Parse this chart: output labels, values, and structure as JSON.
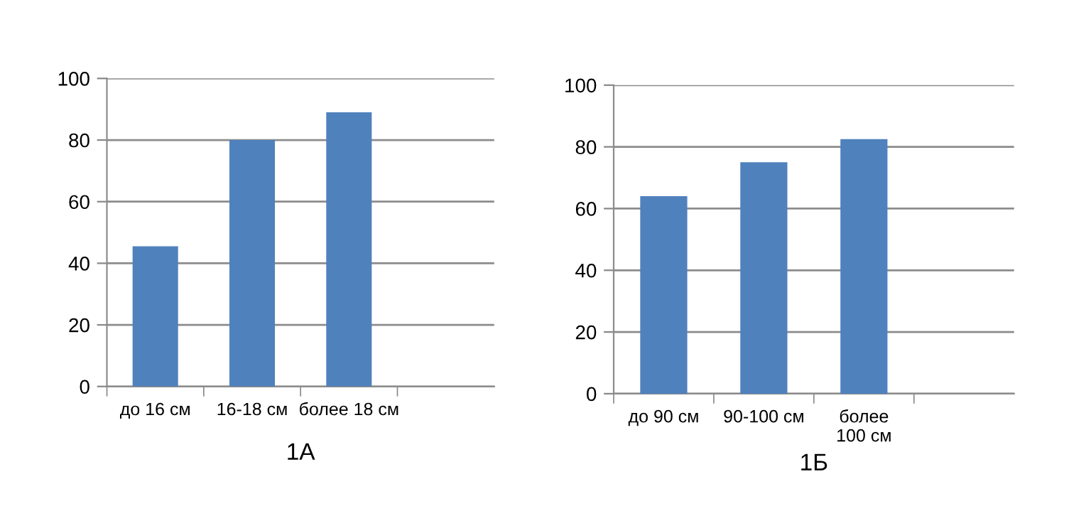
{
  "chart_data": [
    {
      "type": "bar",
      "xlabel": "1А",
      "categories": [
        "до 16 см",
        "16-18 см",
        "более 18 см",
        null
      ],
      "values": [
        45.5,
        80,
        89,
        null
      ],
      "color": "#4f81bd",
      "ylim": [
        0,
        100
      ],
      "yticks": [
        0,
        20,
        40,
        60,
        80,
        100
      ],
      "grid": "y"
    },
    {
      "type": "bar",
      "xlabel": "1Б",
      "categories": [
        "до 90 см",
        "90-100 см",
        "более\n100 см",
        null
      ],
      "values": [
        64,
        75,
        82.5,
        null
      ],
      "color": "#4f81bd",
      "ylim": [
        0,
        100
      ],
      "yticks": [
        0,
        20,
        40,
        60,
        80,
        100
      ],
      "grid": "y"
    }
  ]
}
